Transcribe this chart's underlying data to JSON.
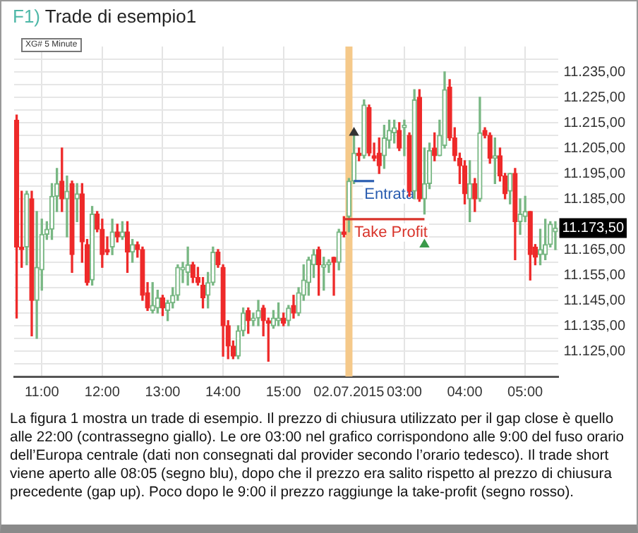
{
  "chart_data": {
    "type": "candlestick",
    "title": "F1) Trade di esempio1",
    "categories": [
      null,
      null,
      null,
      null,
      null,
      "11:00",
      null,
      null,
      null,
      null,
      null,
      null,
      null,
      null,
      null,
      null,
      null,
      "12:00",
      null,
      null,
      null,
      null,
      null,
      null,
      null,
      null,
      null,
      null,
      null,
      "13:00",
      null,
      null,
      null,
      null,
      null,
      null,
      null,
      null,
      null,
      null,
      null,
      "14:00",
      null,
      null,
      null,
      null,
      null,
      null,
      null,
      null,
      null,
      null,
      null,
      "15:00",
      null,
      null,
      null,
      null,
      null,
      null,
      null,
      null,
      null,
      null,
      null,
      null,
      "02.07.2015",
      null,
      null,
      null,
      null,
      null,
      null,
      null,
      null,
      null,
      null,
      "03:00",
      null,
      null,
      null,
      null,
      null,
      null,
      null,
      null,
      null,
      null,
      null,
      "04:00",
      null,
      null,
      null,
      null,
      null,
      null,
      null,
      null,
      null,
      null,
      null,
      "05:00",
      null,
      null,
      null,
      null,
      null,
      null
    ],
    "ohlc": [
      [
        11216,
        11218,
        11138,
        11166
      ],
      [
        11166,
        11188,
        11158,
        11165
      ],
      [
        11166,
        11188,
        11159,
        11187
      ],
      [
        11185,
        11188,
        11131,
        11145
      ],
      [
        11145,
        11180,
        11130,
        11158
      ],
      [
        11157,
        11177,
        11149,
        11171
      ],
      [
        11171,
        11176,
        11169,
        11173
      ],
      [
        11173,
        11191,
        11169,
        11186
      ],
      [
        11186,
        11197,
        11180,
        11191
      ],
      [
        11192,
        11205,
        11180,
        11185
      ],
      [
        11185,
        11194,
        11170,
        11188
      ],
      [
        11191,
        11192,
        11156,
        11163
      ],
      [
        11185,
        11191,
        11176,
        11187
      ],
      [
        11187,
        11191,
        11160,
        11168
      ],
      [
        11167,
        11169,
        11151,
        11152
      ],
      [
        11153,
        11182,
        11151,
        11179
      ],
      [
        11179,
        11180,
        11172,
        11173
      ],
      [
        11173,
        11177,
        11158,
        11163
      ],
      [
        11165,
        11170,
        11163,
        11164
      ],
      [
        11166,
        11177,
        11163,
        11172
      ],
      [
        11172,
        11175,
        11168,
        11170
      ],
      [
        11170,
        11176,
        11169,
        11172
      ],
      [
        11172,
        11176,
        11156,
        11164
      ],
      [
        11164,
        11169,
        11160,
        11167
      ],
      [
        11167,
        11168,
        11162,
        11165
      ],
      [
        11165,
        11166,
        11145,
        11147
      ],
      [
        11148,
        11152,
        11141,
        11142
      ],
      [
        11141,
        11152,
        11140,
        11143
      ],
      [
        11142,
        11149,
        11140,
        11146
      ],
      [
        11146,
        11147,
        11139,
        11142
      ],
      [
        11141,
        11145,
        11137,
        11144
      ],
      [
        11144,
        11150,
        11142,
        11147
      ],
      [
        11147,
        11159,
        11145,
        11158
      ],
      [
        11157,
        11160,
        11152,
        11158
      ],
      [
        11156,
        11166,
        11151,
        11159
      ],
      [
        11159,
        11160,
        11152,
        11154
      ],
      [
        11154,
        11158,
        11151,
        11152
      ],
      [
        11151,
        11154,
        11142,
        11146
      ],
      [
        11147,
        11156,
        11142,
        11152
      ],
      [
        11152,
        11166,
        11151,
        11164
      ],
      [
        11164,
        11165,
        11158,
        11159
      ],
      [
        11158,
        11159,
        11123,
        11135
      ],
      [
        11135,
        11137,
        11122,
        11127
      ],
      [
        11127,
        11129,
        11122,
        11123
      ],
      [
        11123,
        11135,
        11122,
        11133
      ],
      [
        11133,
        11142,
        11131,
        11140
      ],
      [
        11141,
        11142,
        11132,
        11137
      ],
      [
        11137,
        11140,
        11135,
        11138
      ],
      [
        11138,
        11145,
        11135,
        11141
      ],
      [
        11142,
        11143,
        11131,
        11137
      ],
      [
        11137,
        11138,
        11121,
        11136
      ],
      [
        11135,
        11141,
        11134,
        11138
      ],
      [
        11137,
        11144,
        11135,
        11138
      ],
      [
        11138,
        11140,
        11135,
        11136
      ],
      [
        11137,
        11143,
        11135,
        11142
      ],
      [
        11143,
        11147,
        11138,
        11140
      ],
      [
        11140,
        11150,
        11139,
        11148
      ],
      [
        11147,
        11159,
        11145,
        11153
      ],
      [
        11152,
        11162,
        11147,
        11161
      ],
      [
        11159,
        11165,
        11154,
        11163
      ],
      [
        11165,
        11166,
        11147,
        11159
      ],
      [
        11158,
        11162,
        11149,
        11159
      ],
      [
        11159,
        11161,
        11156,
        11160
      ],
      [
        11162,
        11162,
        11147,
        11160
      ],
      [
        11160,
        11173,
        11157,
        11172
      ],
      [
        11172,
        11178,
        11170,
        11171
      ],
      [
        11178,
        11193,
        11172,
        11192
      ],
      [
        11192,
        11211,
        11191,
        11203
      ],
      [
        11203,
        11205,
        11200,
        11202
      ],
      [
        11202,
        11224,
        11201,
        11222
      ],
      [
        11221,
        11222,
        11202,
        11203
      ],
      [
        11202,
        11207,
        11200,
        11201
      ],
      [
        11203,
        11209,
        11195,
        11198
      ],
      [
        11202,
        11214,
        11197,
        11209
      ],
      [
        11208,
        11216,
        11205,
        11212
      ],
      [
        11211,
        11216,
        11207,
        11213
      ],
      [
        11212,
        11215,
        11204,
        11205
      ],
      [
        11213,
        11216,
        11202,
        11214
      ],
      [
        11210,
        11211,
        11186,
        11188
      ],
      [
        11188,
        11228,
        11185,
        11224
      ],
      [
        11225,
        11228,
        11184,
        11185
      ],
      [
        11185,
        11205,
        11179,
        11191
      ],
      [
        11191,
        11207,
        11189,
        11204
      ],
      [
        11205,
        11211,
        11200,
        11202
      ],
      [
        11202,
        11216,
        11202,
        11210
      ],
      [
        11206,
        11235,
        11205,
        11228
      ],
      [
        11229,
        11232,
        11208,
        11209
      ],
      [
        11209,
        11213,
        11200,
        11202
      ],
      [
        11201,
        11203,
        11191,
        11198
      ],
      [
        11198,
        11200,
        11183,
        11187
      ],
      [
        11185,
        11200,
        11176,
        11191
      ],
      [
        11191,
        11193,
        11180,
        11185
      ],
      [
        11185,
        11225,
        11184,
        11211
      ],
      [
        11212,
        11213,
        11209,
        11210
      ],
      [
        11210,
        11211,
        11199,
        11201
      ],
      [
        11201,
        11209,
        11191,
        11202
      ],
      [
        11202,
        11205,
        11192,
        11194
      ],
      [
        11194,
        11195,
        11185,
        11187
      ],
      [
        11188,
        11195,
        11183,
        11195
      ],
      [
        11195,
        11197,
        11161,
        11176
      ],
      [
        11176,
        11185,
        11171,
        11179
      ],
      [
        11178,
        11186,
        11176,
        11180
      ],
      [
        11180,
        11180,
        11153,
        11163
      ],
      [
        11166,
        11167,
        11159,
        11162
      ],
      [
        11163,
        11173,
        11159,
        11165
      ],
      [
        11163,
        11177,
        11161,
        11167
      ],
      [
        11167,
        11176,
        11166,
        11175
      ],
      [
        11172,
        11176,
        11165,
        11173.5
      ]
    ],
    "colors": [
      "#ee2a2a",
      "#ee2a2a",
      "#78b783",
      "#ee2a2a",
      "#78b783",
      "#78b783",
      "#78b783",
      "#78b783",
      "#78b783",
      "#ee2a2a",
      "#78b783",
      "#ee2a2a",
      "#78b783",
      "#ee2a2a",
      "#ee2a2a",
      "#78b783",
      "#ee2a2a",
      "#ee2a2a",
      "#ee2a2a",
      "#78b783",
      "#ee2a2a",
      "#78b783",
      "#ee2a2a",
      "#78b783",
      "#ee2a2a",
      "#ee2a2a",
      "#ee2a2a",
      "#78b783",
      "#78b783",
      "#ee2a2a",
      "#78b783",
      "#78b783",
      "#78b783",
      "#78b783",
      "#78b783",
      "#ee2a2a",
      "#ee2a2a",
      "#ee2a2a",
      "#78b783",
      "#78b783",
      "#ee2a2a",
      "#ee2a2a",
      "#ee2a2a",
      "#ee2a2a",
      "#78b783",
      "#78b783",
      "#ee2a2a",
      "#78b783",
      "#78b783",
      "#ee2a2a",
      "#ee2a2a",
      "#78b783",
      "#78b783",
      "#ee2a2a",
      "#78b783",
      "#ee2a2a",
      "#78b783",
      "#78b783",
      "#78b783",
      "#78b783",
      "#ee2a2a",
      "#78b783",
      "#78b783",
      "#ee2a2a",
      "#78b783",
      "#ee2a2a",
      "#78b783",
      "#78b783",
      "#ee2a2a",
      "#78b783",
      "#ee2a2a",
      "#ee2a2a",
      "#ee2a2a",
      "#78b783",
      "#78b783",
      "#78b783",
      "#ee2a2a",
      "#78b783",
      "#ee2a2a",
      "#78b783",
      "#ee2a2a",
      "#78b783",
      "#78b783",
      "#ee2a2a",
      "#78b783",
      "#78b783",
      "#ee2a2a",
      "#ee2a2a",
      "#ee2a2a",
      "#ee2a2a",
      "#78b783",
      "#ee2a2a",
      "#78b783",
      "#ee2a2a",
      "#ee2a2a",
      "#78b783",
      "#ee2a2a",
      "#ee2a2a",
      "#78b783",
      "#ee2a2a",
      "#78b783",
      "#78b783",
      "#ee2a2a",
      "#ee2a2a",
      "#78b783",
      "#78b783",
      "#78b783",
      "#78b783"
    ],
    "series": [
      {
        "type": "line",
        "name": "Entrata",
        "color": "#2a5db0",
        "values": [
          null,
          null,
          null,
          null,
          null,
          null,
          null,
          null,
          null,
          null,
          null,
          null,
          null,
          null,
          null,
          null,
          null,
          null,
          null,
          null,
          null,
          null,
          null,
          null,
          null,
          null,
          null,
          null,
          null,
          null,
          null,
          null,
          null,
          null,
          null,
          null,
          null,
          null,
          null,
          null,
          null,
          null,
          null,
          null,
          null,
          null,
          null,
          null,
          null,
          null,
          null,
          null,
          null,
          null,
          null,
          null,
          null,
          null,
          null,
          null,
          null,
          null,
          null,
          null,
          null,
          null,
          null,
          11192,
          11192,
          11192,
          11192,
          11192,
          null,
          null,
          null,
          null,
          null,
          null,
          null,
          null,
          null,
          null,
          null,
          null,
          null,
          null,
          null,
          null,
          null,
          null,
          null,
          null,
          null,
          null,
          null,
          null,
          null,
          null,
          null,
          null,
          null,
          null,
          null,
          null,
          null,
          null,
          null,
          null
        ]
      },
      {
        "type": "line",
        "name": "Take Profit",
        "color": "#d9342b",
        "values": [
          null,
          null,
          null,
          null,
          null,
          null,
          null,
          null,
          null,
          null,
          null,
          null,
          null,
          null,
          null,
          null,
          null,
          null,
          null,
          null,
          null,
          null,
          null,
          null,
          null,
          null,
          null,
          null,
          null,
          null,
          null,
          null,
          null,
          null,
          null,
          null,
          null,
          null,
          null,
          null,
          null,
          null,
          null,
          null,
          null,
          null,
          null,
          null,
          null,
          null,
          null,
          null,
          null,
          null,
          null,
          null,
          null,
          null,
          null,
          null,
          null,
          null,
          null,
          null,
          null,
          11177,
          11177,
          11177,
          11177,
          11177,
          11177,
          11177,
          11177,
          11177,
          11177,
          11177,
          11177,
          11177,
          11177,
          11177,
          11177,
          11177,
          null,
          null,
          null,
          null,
          null,
          null,
          null,
          null,
          null,
          null,
          null,
          null,
          null,
          null,
          null,
          null,
          null,
          null,
          null,
          null,
          null,
          null,
          null,
          null,
          null,
          null
        ]
      },
      {
        "type": "scatter",
        "marker": "triangle",
        "color": "#333333",
        "values": [
          null,
          null,
          null,
          null,
          null,
          null,
          null,
          null,
          null,
          null,
          null,
          null,
          null,
          null,
          null,
          null,
          null,
          null,
          null,
          null,
          null,
          null,
          null,
          null,
          null,
          null,
          null,
          null,
          null,
          null,
          null,
          null,
          null,
          null,
          null,
          null,
          null,
          null,
          null,
          null,
          null,
          null,
          null,
          null,
          null,
          null,
          null,
          null,
          null,
          null,
          null,
          null,
          null,
          null,
          null,
          null,
          null,
          null,
          null,
          null,
          null,
          null,
          null,
          null,
          null,
          null,
          null,
          11211,
          null,
          null,
          null,
          null,
          null,
          null,
          null,
          null,
          null,
          null,
          null,
          null,
          null,
          null,
          null,
          null,
          null,
          null,
          null,
          null,
          null,
          null,
          null,
          null,
          null,
          null,
          null,
          null,
          null,
          null,
          null,
          null,
          null,
          null,
          null,
          null,
          null,
          null,
          null,
          null
        ]
      },
      {
        "type": "scatter",
        "marker": "triangle",
        "color": "#3a9a4a",
        "values": [
          null,
          null,
          null,
          null,
          null,
          null,
          null,
          null,
          null,
          null,
          null,
          null,
          null,
          null,
          null,
          null,
          null,
          null,
          null,
          null,
          null,
          null,
          null,
          null,
          null,
          null,
          null,
          null,
          null,
          null,
          null,
          null,
          null,
          null,
          null,
          null,
          null,
          null,
          null,
          null,
          null,
          null,
          null,
          null,
          null,
          null,
          null,
          null,
          null,
          null,
          null,
          null,
          null,
          null,
          null,
          null,
          null,
          null,
          null,
          null,
          null,
          null,
          null,
          null,
          null,
          null,
          null,
          null,
          null,
          null,
          null,
          null,
          null,
          null,
          null,
          null,
          null,
          null,
          null,
          null,
          null,
          11167,
          null,
          null,
          null,
          null,
          null,
          null,
          null,
          null,
          null,
          null,
          null,
          null,
          null,
          null,
          null,
          null,
          null,
          null,
          null,
          null,
          null,
          null,
          null,
          null,
          null,
          null
        ]
      }
    ],
    "ylim": [
      11115,
      11245
    ],
    "yticks": [
      {
        "value": 11120,
        "label": null
      },
      {
        "value": 11125,
        "label": "11.125,00"
      },
      {
        "value": 11130,
        "label": null
      },
      {
        "value": 11135,
        "label": "11.135,00"
      },
      {
        "value": 11140,
        "label": null
      },
      {
        "value": 11145,
        "label": "11.145,00"
      },
      {
        "value": 11150,
        "label": null
      },
      {
        "value": 11155,
        "label": "11.155,00"
      },
      {
        "value": 11160,
        "label": null
      },
      {
        "value": 11165,
        "label": "11.165,00"
      },
      {
        "value": 11170,
        "label": null
      },
      {
        "value": 11175,
        "label": null
      },
      {
        "value": 11180,
        "label": null
      },
      {
        "value": 11185,
        "label": "11.185,00"
      },
      {
        "value": 11190,
        "label": null
      },
      {
        "value": 11195,
        "label": "11.195,00"
      },
      {
        "value": 11200,
        "label": null
      },
      {
        "value": 11205,
        "label": "11.205,00"
      },
      {
        "value": 11210,
        "label": null
      },
      {
        "value": 11215,
        "label": "11.215,00"
      },
      {
        "value": 11220,
        "label": null
      },
      {
        "value": 11225,
        "label": "11.225,00"
      },
      {
        "value": 11230,
        "label": null
      },
      {
        "value": 11235,
        "label": "11.235,00"
      },
      {
        "value": 11240,
        "label": null
      }
    ],
    "ref_lines": [
      {
        "axis": "x",
        "value": "02.07.2015",
        "color": "#f5c98a"
      }
    ],
    "grid": true,
    "annotations": [
      "XG# 5 Minute",
      "11.173,50",
      "La figura 1 mostra un trade di esempio. Il prezzo di chiusura utilizzato per il gap close è quello alle 22:00 (contrassegno giallo). Le ore 03:00 nel grafico corrispondono alle 9:00 del fuso orario dell’Europa centrale (dati non consegnati dal provider secondo l’orario tedesco). Il trade short viene aperto alle 08:05 (segno blu), dopo che il prezzo era salito rispetto al prezzo di chiusura precedente (gap up). Poco dopo le 9:00 il prezzo raggiunge la take-profit (segno rosso)."
    ]
  }
}
